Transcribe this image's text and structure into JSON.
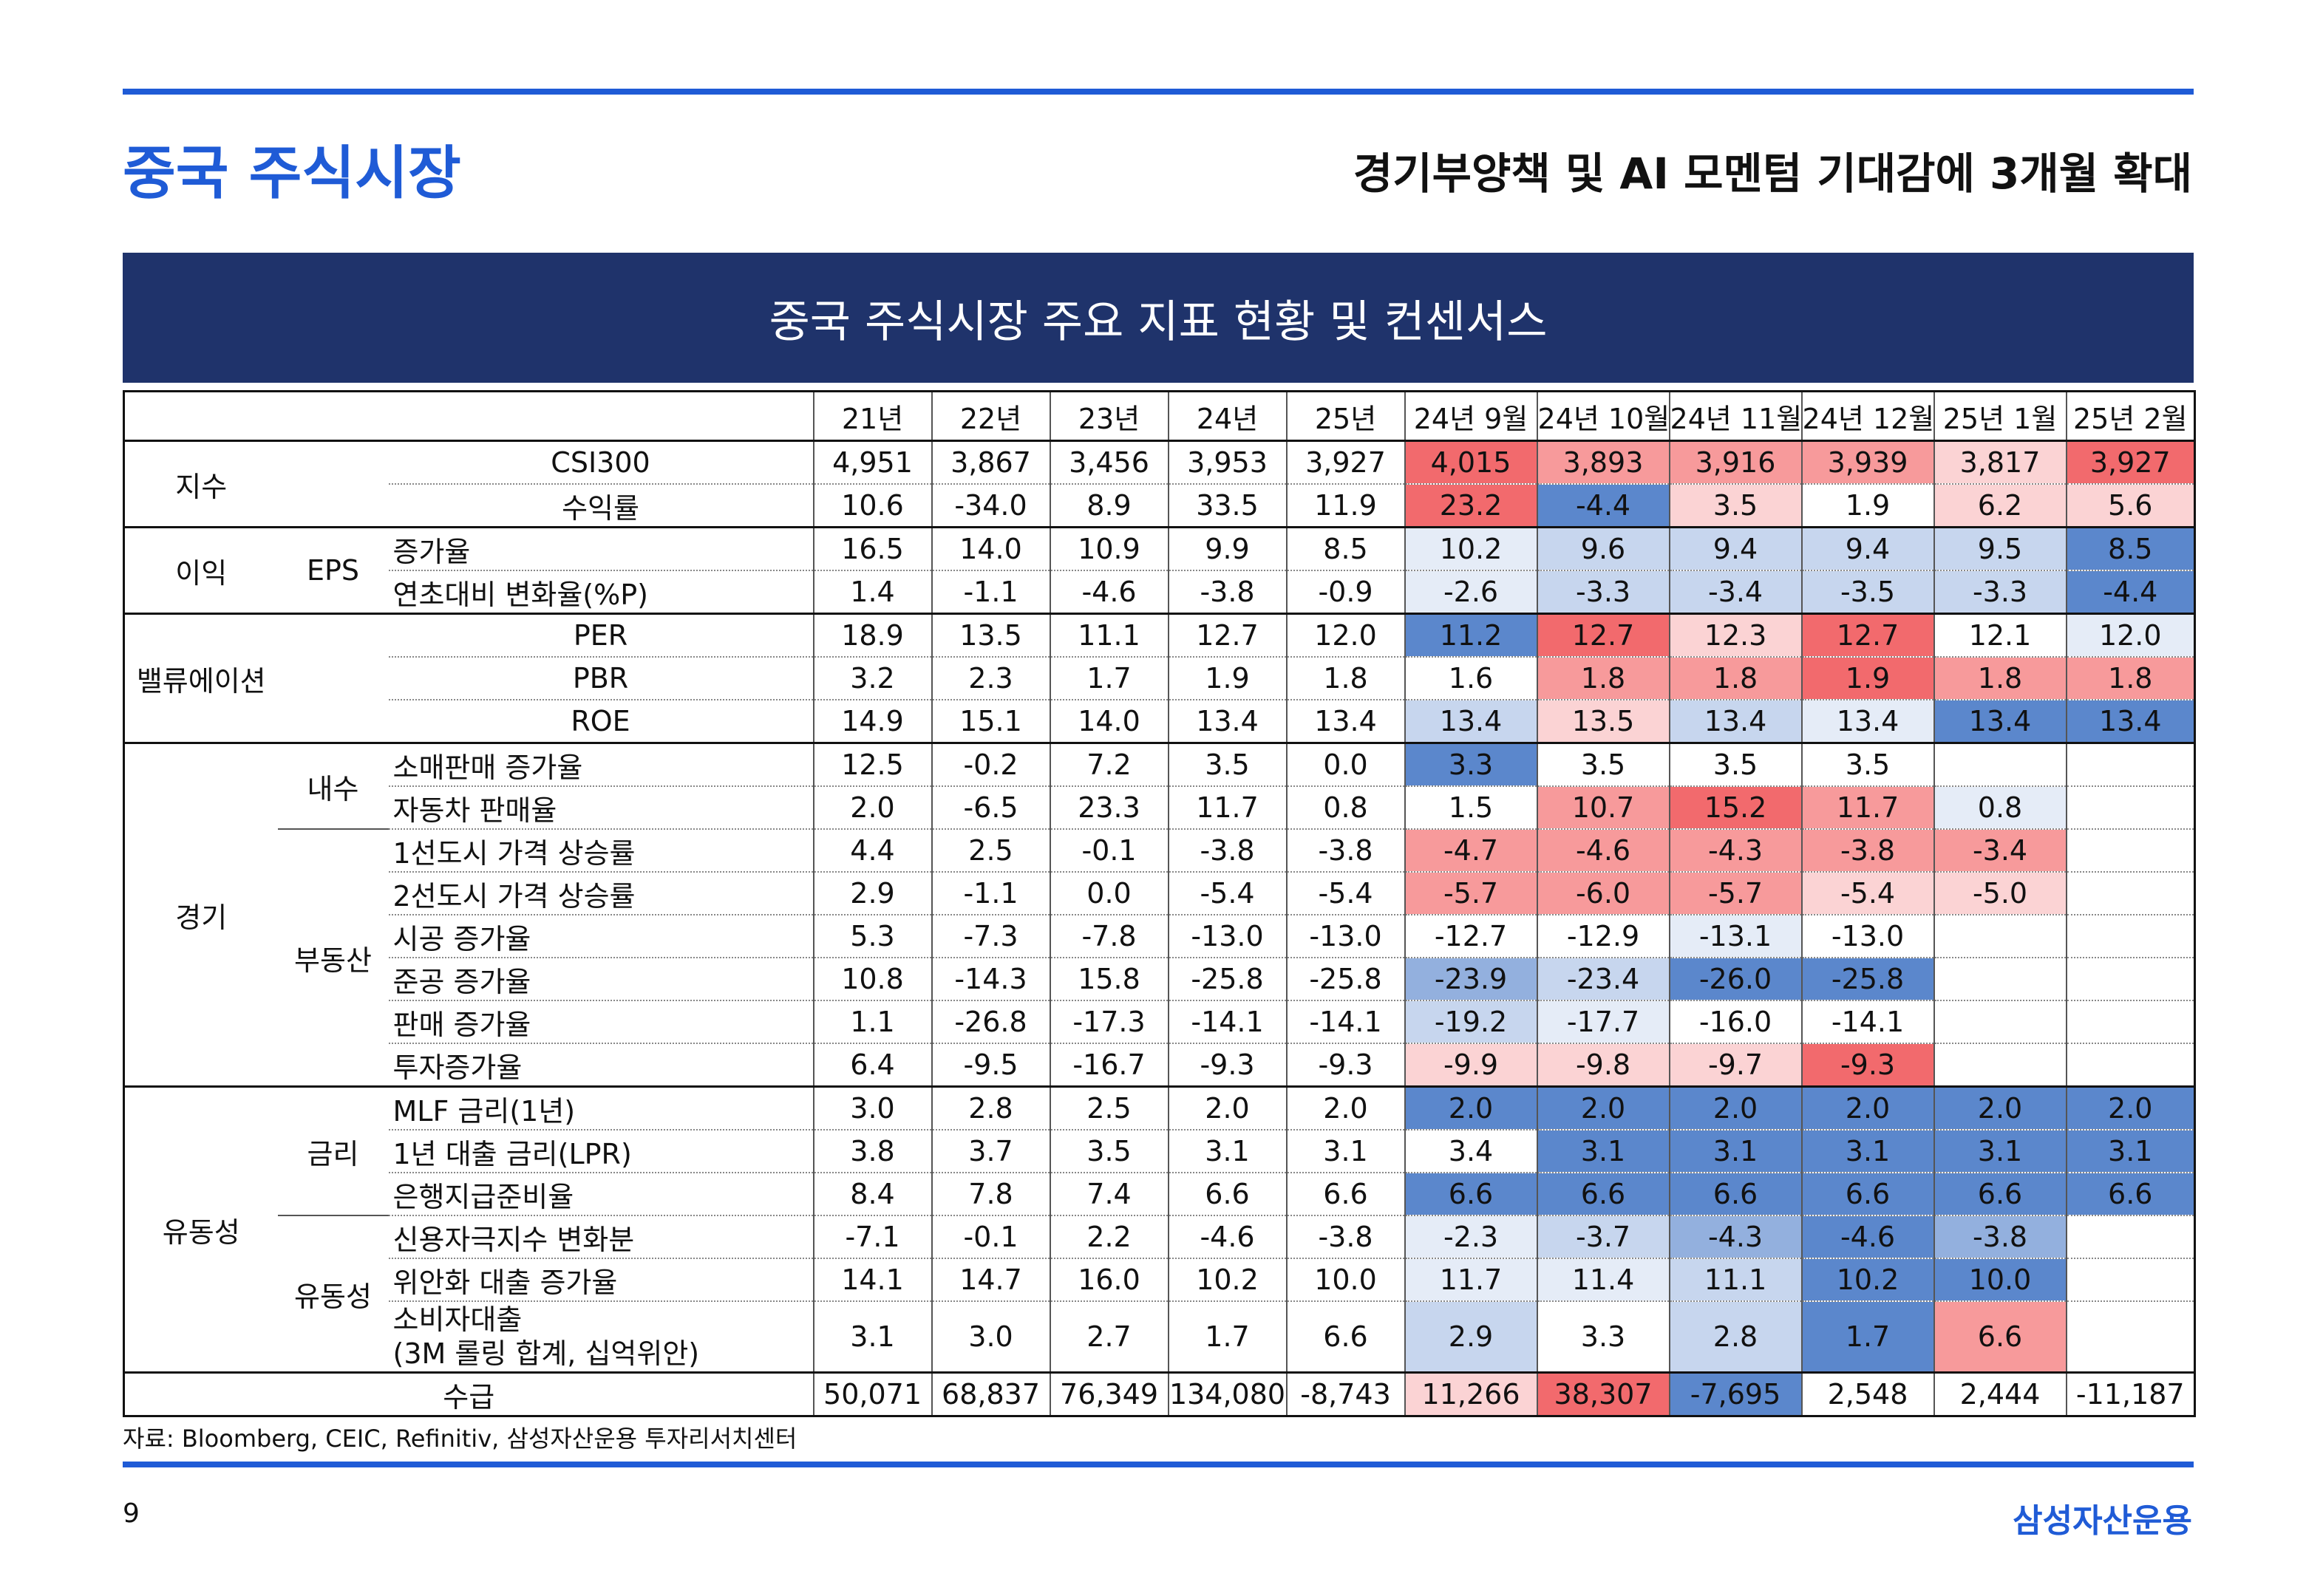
{
  "page": {
    "title": "중국 주식시장",
    "subtitle": "경기부양책 및 AI 모멘텀 기대감에 3개월 확대",
    "table_title": "중국 주식시장 주요 지표 현황 및 컨센서스",
    "source": "자료: Bloomberg, CEIC, Refinitiv, 삼성자산운용 투자리서치센터",
    "page_number": "9",
    "brand": "삼성자산운용"
  },
  "colors": {
    "accent_blue": "#1f5bd6",
    "banner_navy": "#1f336b",
    "heat_red_strong": "#f26a6d",
    "heat_red_mid": "#f79a9b",
    "heat_red_light": "#fbd3d4",
    "heat_blue_strong": "#5b87cc",
    "heat_blue_mid": "#93b0de",
    "heat_blue_light": "#c7d6ee",
    "heat_blue_faint": "#e5ecf7"
  },
  "table": {
    "columns": [
      "21년",
      "22년",
      "23년",
      "24년",
      "25년",
      "24년 9월",
      "24년 10월",
      "24년 11월",
      "24년 12월",
      "25년 1월",
      "25년 2월"
    ],
    "rows": [
      {
        "cat": "지수",
        "sub": "",
        "item": "CSI300",
        "values": [
          "4,951",
          "3,867",
          "3,456",
          "3,953",
          "3,927",
          "4,015",
          "3,893",
          "3,916",
          "3,939",
          "3,817",
          "3,927"
        ],
        "heat": [
          "r3",
          "r2",
          "r2",
          "r2",
          "r1",
          "r3"
        ]
      },
      {
        "cat": "",
        "sub": "",
        "item": "수익률",
        "values": [
          "10.6",
          "-34.0",
          "8.9",
          "33.5",
          "11.9",
          "23.2",
          "-4.4",
          "3.5",
          "1.9",
          "6.2",
          "5.6"
        ],
        "heat": [
          "r3",
          "b3",
          "r0",
          "",
          "r1",
          "r1"
        ]
      },
      {
        "cat": "이익",
        "sub": "EPS",
        "item": "증가율",
        "values": [
          "16.5",
          "14.0",
          "10.9",
          "9.9",
          "8.5",
          "10.2",
          "9.6",
          "9.4",
          "9.4",
          "9.5",
          "8.5"
        ],
        "heat": [
          "b0",
          "b1",
          "b1",
          "b1",
          "b1",
          "b3"
        ]
      },
      {
        "cat": "",
        "sub": "",
        "item": "연초대비 변화율(%P)",
        "values": [
          "1.4",
          "-1.1",
          "-4.6",
          "-3.8",
          "-0.9",
          "-2.6",
          "-3.3",
          "-3.4",
          "-3.5",
          "-3.3",
          "-4.4"
        ],
        "heat": [
          "b0",
          "b1",
          "b1",
          "b1",
          "b1",
          "b3"
        ]
      },
      {
        "cat": "밸류에이션",
        "sub": "",
        "item": "PER",
        "values": [
          "18.9",
          "13.5",
          "11.1",
          "12.7",
          "12.0",
          "11.2",
          "12.7",
          "12.3",
          "12.7",
          "12.1",
          "12.0"
        ],
        "heat": [
          "b3",
          "r3",
          "r1",
          "r3",
          "",
          "b0"
        ]
      },
      {
        "cat": "",
        "sub": "",
        "item": "PBR",
        "values": [
          "3.2",
          "2.3",
          "1.7",
          "1.9",
          "1.8",
          "1.6",
          "1.8",
          "1.8",
          "1.9",
          "1.8",
          "1.8"
        ],
        "heat": [
          "",
          "r2",
          "r2",
          "r3",
          "r2",
          "r2"
        ]
      },
      {
        "cat": "",
        "sub": "",
        "item": "ROE",
        "values": [
          "14.9",
          "15.1",
          "14.0",
          "13.4",
          "13.4",
          "13.4",
          "13.5",
          "13.4",
          "13.4",
          "13.4",
          "13.4"
        ],
        "heat": [
          "b1",
          "r0",
          "b1",
          "b0",
          "b3",
          "b3"
        ]
      },
      {
        "cat": "경기",
        "sub": "내수",
        "item": "소매판매 증가율",
        "values": [
          "12.5",
          "-0.2",
          "7.2",
          "3.5",
          "0.0",
          "3.3",
          "3.5",
          "3.5",
          "3.5",
          "",
          ""
        ],
        "heat": [
          "b3",
          "",
          "",
          "",
          "",
          ""
        ]
      },
      {
        "cat": "",
        "sub": "",
        "item": "자동차 판매율",
        "values": [
          "2.0",
          "-6.5",
          "23.3",
          "11.7",
          "0.8",
          "1.5",
          "10.7",
          "15.2",
          "11.7",
          "0.8",
          ""
        ],
        "heat": [
          "",
          "r2",
          "r3",
          "r2",
          "b0",
          ""
        ]
      },
      {
        "cat": "",
        "sub": "부동산",
        "item": "1선도시 가격 상승률",
        "values": [
          "4.4",
          "2.5",
          "-0.1",
          "-3.8",
          "-3.8",
          "-4.7",
          "-4.6",
          "-4.3",
          "-3.8",
          "-3.4",
          ""
        ],
        "heat": [
          "r2",
          "r2",
          "r2",
          "r2",
          "r2",
          ""
        ]
      },
      {
        "cat": "",
        "sub": "",
        "item": "2선도시 가격 상승률",
        "values": [
          "2.9",
          "-1.1",
          "0.0",
          "-5.4",
          "-5.4",
          "-5.7",
          "-6.0",
          "-5.7",
          "-5.4",
          "-5.0",
          ""
        ],
        "heat": [
          "r2",
          "r2",
          "r2",
          "r1",
          "r1",
          ""
        ]
      },
      {
        "cat": "",
        "sub": "",
        "item": "시공 증가율",
        "values": [
          "5.3",
          "-7.3",
          "-7.8",
          "-13.0",
          "-13.0",
          "-12.7",
          "-12.9",
          "-13.1",
          "-13.0",
          "",
          ""
        ],
        "heat": [
          "",
          "",
          "b0",
          "",
          "",
          ""
        ]
      },
      {
        "cat": "",
        "sub": "",
        "item": "준공 증가율",
        "values": [
          "10.8",
          "-14.3",
          "15.8",
          "-25.8",
          "-25.8",
          "-23.9",
          "-23.4",
          "-26.0",
          "-25.8",
          "",
          ""
        ],
        "heat": [
          "b2",
          "b1",
          "b3",
          "b3",
          "",
          ""
        ]
      },
      {
        "cat": "",
        "sub": "",
        "item": "판매 증가율",
        "values": [
          "1.1",
          "-26.8",
          "-17.3",
          "-14.1",
          "-14.1",
          "-19.2",
          "-17.7",
          "-16.0",
          "-14.1",
          "",
          ""
        ],
        "heat": [
          "b1",
          "b0",
          "",
          "",
          "",
          ""
        ]
      },
      {
        "cat": "",
        "sub": "",
        "item": "투자증가율",
        "values": [
          "6.4",
          "-9.5",
          "-16.7",
          "-9.3",
          "-9.3",
          "-9.9",
          "-9.8",
          "-9.7",
          "-9.3",
          "",
          ""
        ],
        "heat": [
          "r0",
          "r0",
          "r0",
          "r3",
          "",
          ""
        ]
      },
      {
        "cat": "유동성",
        "sub": "금리",
        "item": "MLF 금리(1년)",
        "values": [
          "3.0",
          "2.8",
          "2.5",
          "2.0",
          "2.0",
          "2.0",
          "2.0",
          "2.0",
          "2.0",
          "2.0",
          "2.0"
        ],
        "heat": [
          "b3",
          "b3",
          "b3",
          "b3",
          "b3",
          "b3"
        ]
      },
      {
        "cat": "",
        "sub": "",
        "item": "1년 대출 금리(LPR)",
        "values": [
          "3.8",
          "3.7",
          "3.5",
          "3.1",
          "3.1",
          "3.4",
          "3.1",
          "3.1",
          "3.1",
          "3.1",
          "3.1"
        ],
        "heat": [
          "",
          "b3",
          "b3",
          "b3",
          "b3",
          "b3"
        ]
      },
      {
        "cat": "",
        "sub": "",
        "item": "은행지급준비율",
        "values": [
          "8.4",
          "7.8",
          "7.4",
          "6.6",
          "6.6",
          "6.6",
          "6.6",
          "6.6",
          "6.6",
          "6.6",
          "6.6"
        ],
        "heat": [
          "b3",
          "b3",
          "b3",
          "b3",
          "b3",
          "b3"
        ]
      },
      {
        "cat": "",
        "sub": "유동성",
        "item": "신용자극지수 변화분",
        "values": [
          "-7.1",
          "-0.1",
          "2.2",
          "-4.6",
          "-3.8",
          "-2.3",
          "-3.7",
          "-4.3",
          "-4.6",
          "-3.8",
          ""
        ],
        "heat": [
          "b0",
          "b1",
          "b2",
          "b3",
          "b2",
          ""
        ]
      },
      {
        "cat": "",
        "sub": "",
        "item": "위안화 대출 증가율",
        "values": [
          "14.1",
          "14.7",
          "16.0",
          "10.2",
          "10.0",
          "11.7",
          "11.4",
          "11.1",
          "10.2",
          "10.0",
          ""
        ],
        "heat": [
          "b0",
          "b0",
          "b1",
          "b3",
          "b3",
          ""
        ]
      },
      {
        "cat": "",
        "sub": "",
        "item": "소비자대출",
        "item2": "(3M 롤링 합계, 십억위안)",
        "values": [
          "3.1",
          "3.0",
          "2.7",
          "1.7",
          "6.6",
          "2.9",
          "3.3",
          "2.8",
          "1.7",
          "6.6",
          ""
        ],
        "heat": [
          "b1",
          "",
          "b1",
          "b3",
          "r2",
          ""
        ]
      },
      {
        "cat": "수급",
        "sub": "",
        "item": "",
        "values": [
          "50,071",
          "68,837",
          "76,349",
          "134,080",
          "-8,743",
          "11,266",
          "38,307",
          "-7,695",
          "2,548",
          "2,444",
          "-11,187"
        ],
        "heat": [
          "r1",
          "r3",
          "b3",
          "",
          "",
          ""
        ]
      }
    ]
  }
}
